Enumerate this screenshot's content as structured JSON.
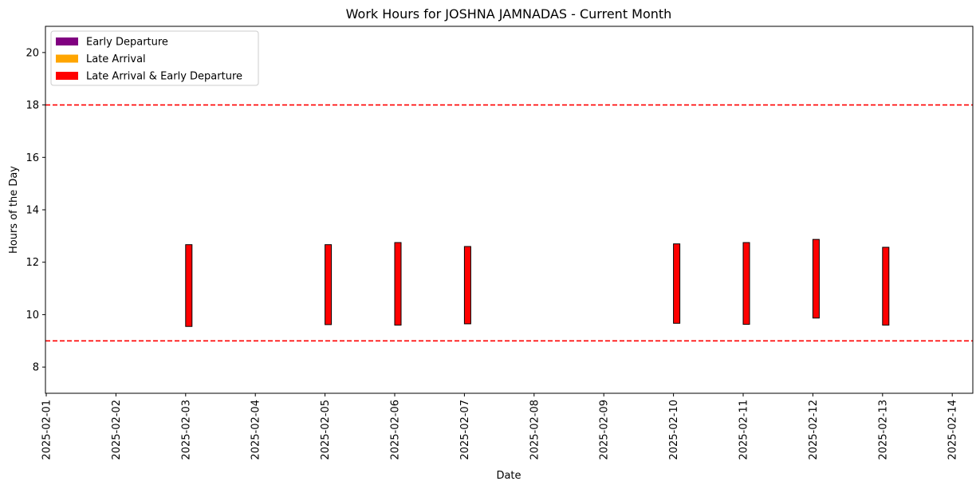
{
  "chart_data": {
    "type": "bar",
    "title": "Work Hours for JOSHNA JAMNADAS - Current Month",
    "xlabel": "Date",
    "ylabel": "Hours of the Day",
    "ylim": [
      7,
      21
    ],
    "yticks": [
      8,
      10,
      12,
      14,
      16,
      18,
      20
    ],
    "x_ticks": [
      "2025-02-01",
      "2025-02-02",
      "2025-02-03",
      "2025-02-04",
      "2025-02-05",
      "2025-02-06",
      "2025-02-07",
      "2025-02-08",
      "2025-02-09",
      "2025-02-10",
      "2025-02-11",
      "2025-02-12",
      "2025-02-13",
      "2025-02-14"
    ],
    "legend": {
      "placement": "upper-left",
      "entries": [
        {
          "label": "Early Departure",
          "color": "#800080"
        },
        {
          "label": "Late Arrival",
          "color": "#ffa500"
        },
        {
          "label": "Late Arrival & Early Departure",
          "color": "#ff0000"
        }
      ]
    },
    "reference_lines": [
      {
        "y": 18,
        "color": "#ff0000",
        "style": "dashed"
      },
      {
        "y": 9,
        "color": "#ff0000",
        "style": "dashed"
      }
    ],
    "bars": [
      {
        "date": "2025-02-03",
        "start": 9.55,
        "end": 12.67,
        "category": "Late Arrival & Early Departure"
      },
      {
        "date": "2025-02-05",
        "start": 9.62,
        "end": 12.67,
        "category": "Late Arrival & Early Departure"
      },
      {
        "date": "2025-02-06",
        "start": 9.6,
        "end": 12.75,
        "category": "Late Arrival & Early Departure"
      },
      {
        "date": "2025-02-07",
        "start": 9.65,
        "end": 12.6,
        "category": "Late Arrival & Early Departure"
      },
      {
        "date": "2025-02-10",
        "start": 9.67,
        "end": 12.7,
        "category": "Late Arrival & Early Departure"
      },
      {
        "date": "2025-02-11",
        "start": 9.63,
        "end": 12.75,
        "category": "Late Arrival & Early Departure"
      },
      {
        "date": "2025-02-12",
        "start": 9.87,
        "end": 12.87,
        "category": "Late Arrival & Early Departure"
      },
      {
        "date": "2025-02-13",
        "start": 9.6,
        "end": 12.57,
        "category": "Late Arrival & Early Departure"
      }
    ],
    "bar_color": "#ff0000",
    "bar_edge_color": "#000000"
  }
}
